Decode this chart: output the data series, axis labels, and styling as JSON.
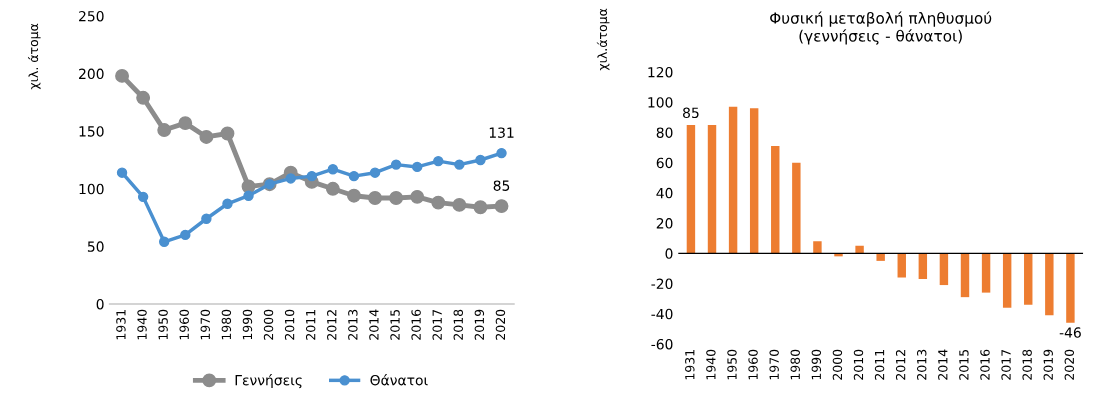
{
  "chart_data": [
    {
      "type": "line",
      "ylabel": "χιλ. άτομα",
      "categories": [
        "1931",
        "1940",
        "1950",
        "1960",
        "1970",
        "1980",
        "1990",
        "2000",
        "2010",
        "2011",
        "2012",
        "2013",
        "2014",
        "2015",
        "2016",
        "2017",
        "2018",
        "2019",
        "2020"
      ],
      "series": [
        {
          "name": "Γεννήσεις",
          "color": "#8c8c8c",
          "values": [
            198,
            179,
            151,
            157,
            145,
            148,
            102,
            104,
            114,
            106,
            100,
            94,
            92,
            92,
            93,
            88,
            86,
            84,
            85
          ],
          "value_labels": [
            null,
            null,
            null,
            null,
            null,
            null,
            null,
            null,
            null,
            null,
            null,
            null,
            null,
            null,
            null,
            null,
            null,
            null,
            "85"
          ]
        },
        {
          "name": "Θάνατοι",
          "color": "#4a90d0",
          "values": [
            114,
            93,
            54,
            60,
            74,
            87,
            94,
            104,
            109,
            111,
            117,
            111,
            114,
            121,
            119,
            124,
            121,
            125,
            131
          ],
          "value_labels": [
            null,
            null,
            null,
            null,
            null,
            null,
            null,
            null,
            null,
            null,
            null,
            null,
            null,
            null,
            null,
            null,
            null,
            null,
            "131"
          ]
        }
      ],
      "ylim": [
        0,
        250
      ],
      "yticks": [
        0,
        50,
        100,
        150,
        200,
        250
      ],
      "grid": false,
      "legend": "bottom",
      "marker": "circle",
      "line_style": "solid"
    },
    {
      "type": "bar",
      "title": "Φυσική μεταβολή πληθυσμού\n(γεννήσεις - θάνατοι)",
      "ylabel": "χιλ.άτομα",
      "categories": [
        "1931",
        "1940",
        "1950",
        "1960",
        "1970",
        "1980",
        "1990",
        "2000",
        "2010",
        "2011",
        "2012",
        "2013",
        "2014",
        "2015",
        "2016",
        "2017",
        "2018",
        "2019",
        "2020"
      ],
      "values": [
        85,
        85,
        97,
        96,
        71,
        60,
        8,
        -2,
        5,
        -5,
        -16,
        -17,
        -21,
        -29,
        -26,
        -36,
        -34,
        -41,
        -46
      ],
      "value_labels": [
        "85",
        null,
        null,
        null,
        null,
        null,
        null,
        null,
        null,
        null,
        null,
        null,
        null,
        null,
        null,
        null,
        null,
        null,
        "-46"
      ],
      "color": "#ed7d31",
      "ref_lines": [
        {
          "axis": "y",
          "value": 0,
          "color": "#000000"
        }
      ],
      "ylim": [
        -60,
        120
      ],
      "yticks": [
        -60,
        -40,
        -20,
        0,
        20,
        40,
        60,
        80,
        100,
        120
      ],
      "grid": false
    }
  ]
}
